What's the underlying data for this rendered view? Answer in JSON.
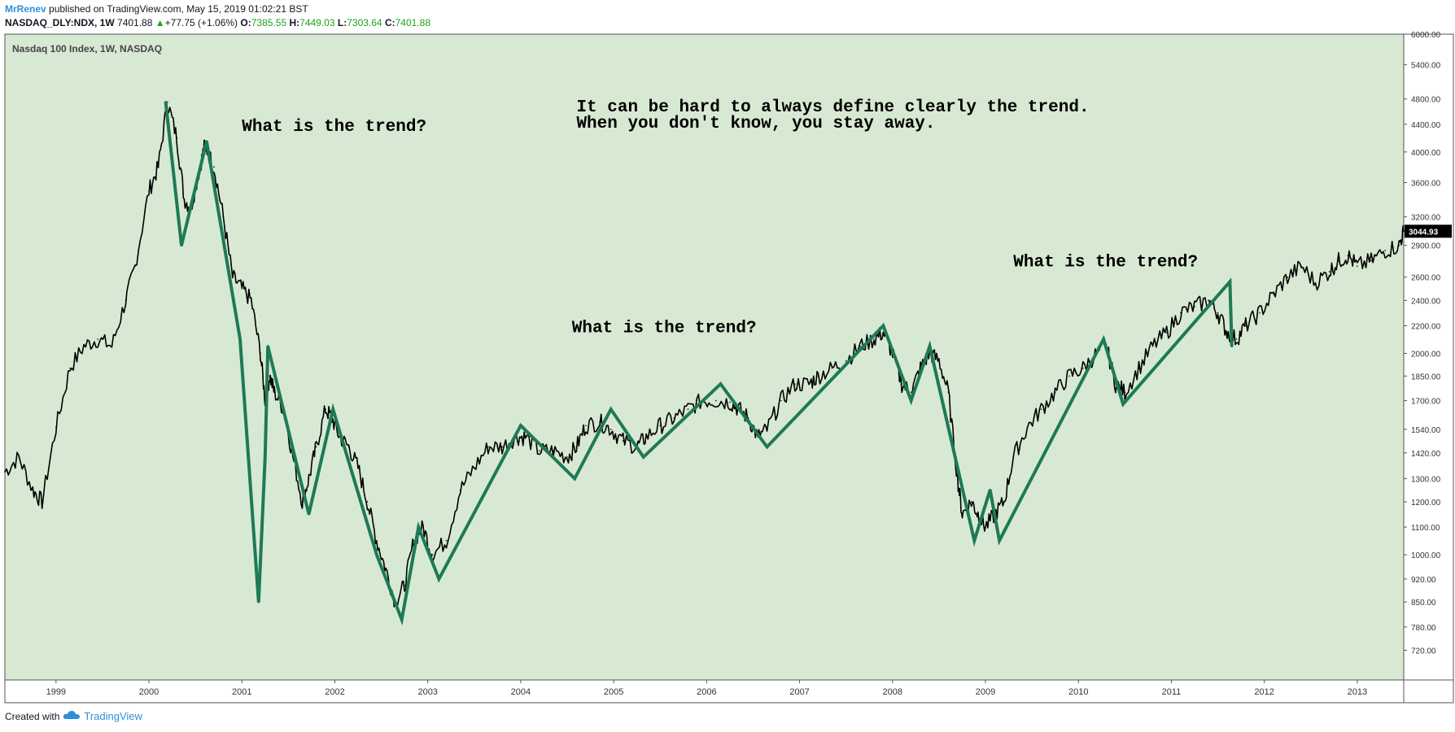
{
  "header": {
    "author": "MrRenev",
    "published_text": "published on TradingView.com, May 15, 2019 01:02:21 BST",
    "symbol": "NASDAQ_DLY:NDX, 1W",
    "last": "7401.88",
    "change": "+77.75 (+1.06%)",
    "o_label": "O:",
    "o": "7385.55",
    "h_label": "H:",
    "h": "7449.03",
    "l_label": "L:",
    "l": "7303.64",
    "c_label": "C:",
    "c": "7401.88"
  },
  "footer": {
    "created_with": "Created with",
    "brand": "TradingView"
  },
  "colors": {
    "background": "#d8e9d3",
    "trend_line": "#1e7a56",
    "candles": "#000000",
    "up": "#1aa51a"
  },
  "chart_data": {
    "type": "line",
    "title": "Nasdaq 100 Index, 1W, NASDAQ",
    "scale": "log",
    "grid": false,
    "xlim": [
      1998.45,
      2013.5
    ],
    "ylim": [
      650,
      6000
    ],
    "x_ticks": [
      1999,
      2000,
      2001,
      2002,
      2003,
      2004,
      2005,
      2006,
      2007,
      2008,
      2009,
      2010,
      2011,
      2012,
      2013
    ],
    "y_ticks": [
      720,
      780,
      850,
      920,
      1000,
      1100,
      1200,
      1300,
      1420,
      1540,
      1700,
      1850,
      2000,
      2200,
      2400,
      2600,
      2900,
      3200,
      3600,
      4000,
      4400,
      4800,
      5400,
      6000
    ],
    "last_price": "3044.93",
    "annotations": [
      {
        "text": "What is the trend?",
        "x": 2001.0,
        "y": 4300
      },
      {
        "text": "It can be hard to always define clearly the trend.",
        "x": 2004.6,
        "y": 4600
      },
      {
        "text": "When you don't know, you stay away.",
        "x": 2004.6,
        "y": 4350
      },
      {
        "text": "What is the trend?",
        "x": 2004.55,
        "y": 2150
      },
      {
        "text": "What is the trend?",
        "x": 2009.3,
        "y": 2700
      }
    ],
    "series": [
      {
        "kind": "price",
        "x": [
          1998.45,
          1998.6,
          1998.75,
          1998.85,
          1999.0,
          1999.15,
          1999.3,
          1999.45,
          1999.6,
          1999.75,
          1999.85,
          2000.0,
          2000.1,
          2000.2,
          2000.3,
          2000.38,
          2000.45,
          2000.55,
          2000.6,
          2000.7,
          2000.8,
          2000.9,
          2001.0,
          2001.1,
          2001.2,
          2001.25,
          2001.3,
          2001.35,
          2001.45,
          2001.55,
          2001.65,
          2001.72,
          2001.8,
          2001.9,
          2001.97,
          2002.05,
          2002.15,
          2002.25,
          2002.35,
          2002.45,
          2002.55,
          2002.65,
          2002.75,
          2002.85,
          2002.95,
          2003.05,
          2003.2,
          2003.35,
          2003.5,
          2003.65,
          2003.8,
          2003.95,
          2004.05,
          2004.2,
          2004.35,
          2004.5,
          2004.6,
          2004.7,
          2004.85,
          2004.97,
          2005.1,
          2005.25,
          2005.35,
          2005.5,
          2005.65,
          2005.8,
          2005.95,
          2006.1,
          2006.25,
          2006.35,
          2006.45,
          2006.55,
          2006.65,
          2006.8,
          2006.95,
          2007.1,
          2007.2,
          2007.35,
          2007.5,
          2007.65,
          2007.8,
          2007.9,
          2008.0,
          2008.1,
          2008.2,
          2008.3,
          2008.4,
          2008.5,
          2008.6,
          2008.7,
          2008.75,
          2008.85,
          2008.92,
          2009.0,
          2009.1,
          2009.2,
          2009.3,
          2009.45,
          2009.6,
          2009.75,
          2009.9,
          2010.05,
          2010.2,
          2010.3,
          2010.4,
          2010.5,
          2010.65,
          2010.8,
          2010.95,
          2011.1,
          2011.25,
          2011.4,
          2011.5,
          2011.6,
          2011.7,
          2011.8,
          2011.95,
          2012.1,
          2012.25,
          2012.4,
          2012.55,
          2012.7,
          2012.8,
          2012.9,
          2013.0,
          2013.15,
          2013.3,
          2013.45,
          2013.5
        ],
        "y": [
          1330,
          1400,
          1250,
          1200,
          1550,
          1900,
          2050,
          2100,
          2050,
          2400,
          2700,
          3500,
          3800,
          4750,
          4200,
          3400,
          3300,
          3800,
          4100,
          3800,
          3200,
          2600,
          2500,
          2400,
          2000,
          1700,
          1850,
          1750,
          1650,
          1400,
          1200,
          1300,
          1450,
          1650,
          1600,
          1500,
          1450,
          1350,
          1200,
          1050,
          950,
          850,
          900,
          1050,
          1100,
          1000,
          1050,
          1250,
          1350,
          1450,
          1450,
          1500,
          1500,
          1430,
          1430,
          1400,
          1450,
          1560,
          1580,
          1540,
          1480,
          1450,
          1500,
          1560,
          1600,
          1650,
          1700,
          1700,
          1690,
          1650,
          1600,
          1500,
          1540,
          1700,
          1800,
          1800,
          1850,
          1900,
          1950,
          2050,
          2100,
          2150,
          2000,
          1800,
          1750,
          1900,
          2000,
          1950,
          1750,
          1300,
          1150,
          1200,
          1150,
          1100,
          1150,
          1200,
          1400,
          1550,
          1650,
          1750,
          1850,
          1900,
          2000,
          2050,
          1800,
          1750,
          1900,
          2050,
          2150,
          2300,
          2350,
          2400,
          2300,
          2150,
          2100,
          2200,
          2300,
          2450,
          2600,
          2700,
          2550,
          2650,
          2750,
          2800,
          2700,
          2750,
          2850,
          2900,
          3044.93
        ]
      },
      {
        "kind": "trend",
        "x": [
          2000.18,
          2000.35,
          2000.62,
          2000.98,
          2001.18,
          2001.25,
          2001.28,
          2001.72,
          2001.98,
          2002.45,
          2002.72,
          2002.9,
          2003.12,
          2004.0,
          2004.58,
          2004.97,
          2005.32,
          2006.15,
          2006.65,
          2007.9,
          2008.2,
          2008.4,
          2008.88,
          2009.05,
          2009.15,
          2010.27,
          2010.48,
          2011.63,
          2011.65
        ],
        "y": [
          4750,
          2900,
          4150,
          2100,
          850,
          1400,
          2050,
          1150,
          1650,
          1000,
          800,
          1100,
          920,
          1560,
          1300,
          1650,
          1400,
          1800,
          1450,
          2200,
          1700,
          2050,
          1050,
          1250,
          1050,
          2100,
          1680,
          2560,
          2050
        ]
      }
    ]
  }
}
